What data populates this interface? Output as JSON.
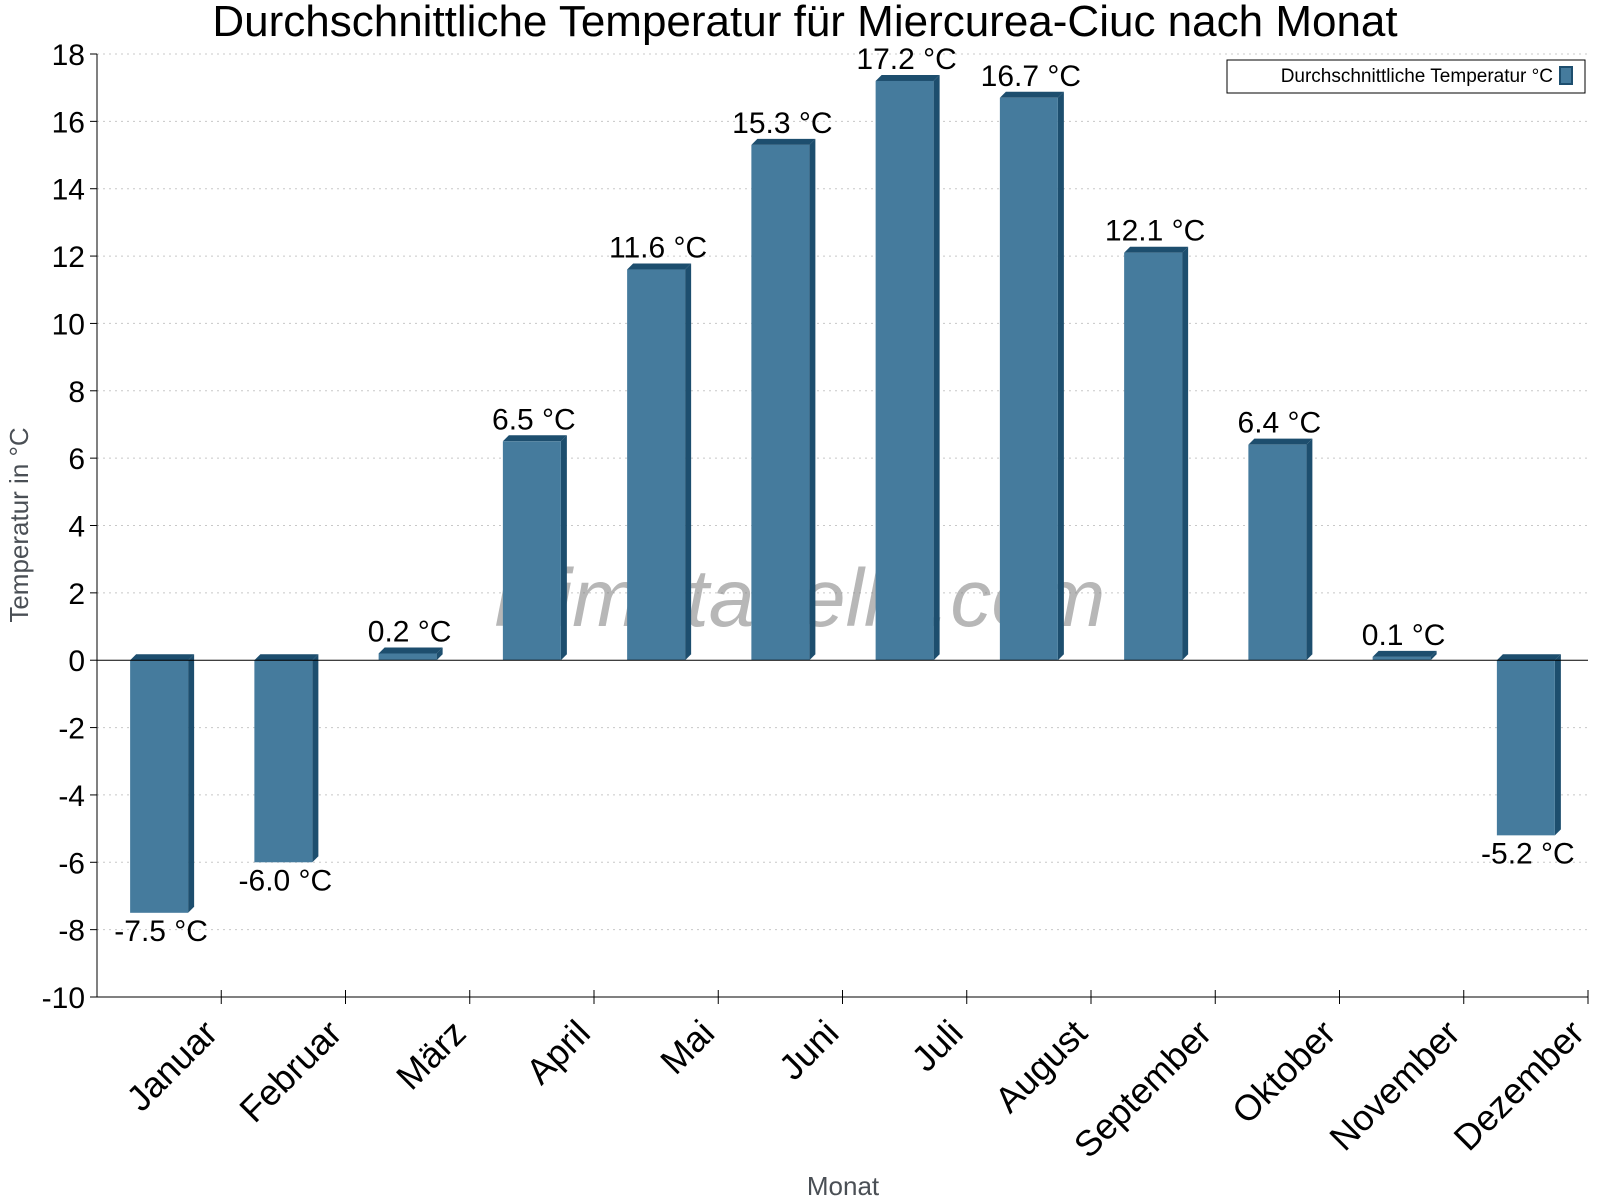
{
  "chart_data": {
    "type": "bar",
    "title": "Durchschnittliche Temperatur für Miercurea-Ciuc nach Monat",
    "xlabel": "Monat",
    "ylabel": "Temperatur in °C",
    "ylim": [
      -10,
      18
    ],
    "yticks": [
      -10,
      -8,
      -6,
      -4,
      -2,
      0,
      2,
      4,
      6,
      8,
      10,
      12,
      14,
      16,
      18
    ],
    "grid": true,
    "legend_position": "top-right",
    "categories": [
      "Januar",
      "Februar",
      "März",
      "April",
      "Mai",
      "Juni",
      "Juli",
      "August",
      "September",
      "Oktober",
      "November",
      "Dezember"
    ],
    "series": [
      {
        "name": "Durchschnittliche Temperatur °C",
        "color": "#457b9d",
        "values": [
          -7.5,
          -6.0,
          0.2,
          6.5,
          11.6,
          15.3,
          17.2,
          16.7,
          12.1,
          6.4,
          0.1,
          -5.2
        ],
        "labels": [
          "-7.5 °C",
          "-6.0 °C",
          "0.2 °C",
          "6.5 °C",
          "11.6 °C",
          "15.3 °C",
          "17.2 °C",
          "16.7 °C",
          "12.1 °C",
          "6.4 °C",
          "0.1 °C",
          "-5.2 °C"
        ]
      }
    ],
    "watermark": "klimatabelle.com"
  }
}
